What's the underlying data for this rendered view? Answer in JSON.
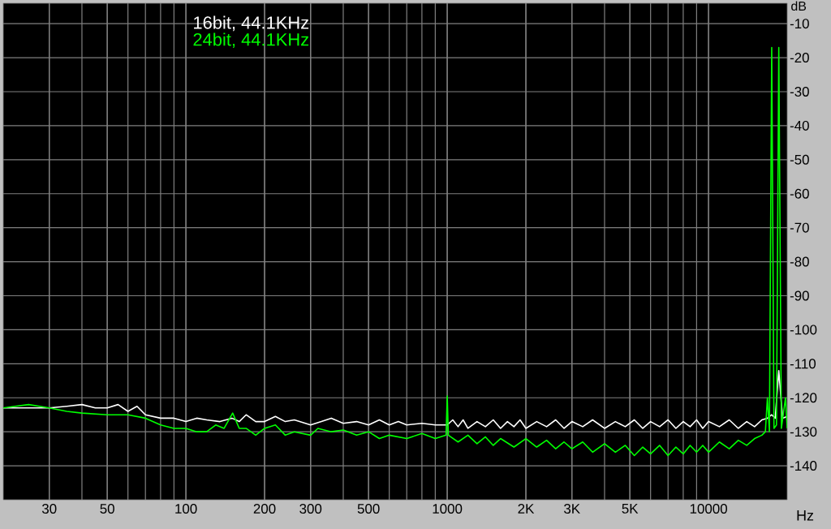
{
  "chart_data": {
    "type": "line",
    "xlabel": "Hz",
    "ylabel": "dB",
    "log": "x",
    "grid": true,
    "legend": "top left",
    "xlim": [
      20,
      20000
    ],
    "ylim": [
      -150,
      -4
    ],
    "xticks": [
      30,
      50,
      100,
      200,
      300,
      500,
      1000,
      {
        "value": 2000,
        "label": "2K"
      },
      {
        "value": 3000,
        "label": "3K"
      },
      {
        "value": 5000,
        "label": "5K"
      },
      10000
    ],
    "yticks": [
      -10,
      -20,
      -30,
      -40,
      -50,
      -60,
      -70,
      -80,
      -90,
      -100,
      -110,
      -120,
      -130,
      -140
    ],
    "series": [
      {
        "name": "16bit, 44.1KHz",
        "color": "#ffffff",
        "x": [
          20,
          25,
          30,
          35,
          40,
          45,
          50,
          55,
          60,
          65,
          70,
          80,
          90,
          100,
          110,
          120,
          135,
          150,
          160,
          170,
          185,
          200,
          220,
          240,
          260,
          300,
          330,
          360,
          400,
          450,
          500,
          550,
          600,
          650,
          700,
          800,
          900,
          1000,
          1050,
          1100,
          1150,
          1200,
          1300,
          1400,
          1500,
          1600,
          1700,
          1800,
          1900,
          2000,
          2200,
          2400,
          2600,
          2800,
          3000,
          3300,
          3600,
          4000,
          4400,
          4800,
          5200,
          5600,
          6000,
          6500,
          7000,
          7500,
          8000,
          8500,
          9000,
          9500,
          10000,
          11000,
          12000,
          13000,
          14000,
          15000,
          16000,
          16800,
          17450,
          18000,
          18570,
          19200,
          20000
        ],
        "values": [
          -123,
          -123,
          -123,
          -122.5,
          -122,
          -123,
          -123,
          -122,
          -124,
          -122.5,
          -125,
          -126,
          -126,
          -127,
          -126,
          -126.5,
          -127,
          -126,
          -127,
          -125,
          -127,
          -127,
          -125.5,
          -127,
          -126.5,
          -128,
          -127,
          -126,
          -127.5,
          -127,
          -128,
          -126.5,
          -128,
          -127,
          -128,
          -127.5,
          -128,
          -128,
          -126.5,
          -128.5,
          -126.5,
          -129,
          -127,
          -128.5,
          -126.5,
          -129,
          -127,
          -128.5,
          -126.5,
          -129,
          -127,
          -128.5,
          -126.5,
          -129,
          -127,
          -128.5,
          -126.5,
          -129,
          -127,
          -128.5,
          -126.5,
          -129,
          -127,
          -128.5,
          -126.5,
          -129,
          -127,
          -128.5,
          -126.5,
          -129,
          -127,
          -128.5,
          -126.5,
          -129,
          -127,
          -128.5,
          -126.5,
          -126,
          -125,
          -126,
          -112,
          -126,
          -125.5
        ]
      },
      {
        "name": "24bit, 44.1KHz",
        "color": "#00ff00",
        "x": [
          20,
          25,
          30,
          35,
          40,
          50,
          60,
          70,
          80,
          90,
          100,
          110,
          120,
          130,
          140,
          151,
          160,
          170,
          185,
          200,
          220,
          240,
          260,
          300,
          320,
          360,
          400,
          450,
          500,
          550,
          600,
          700,
          800,
          900,
          990,
          1000,
          1010,
          1100,
          1200,
          1300,
          1400,
          1500,
          1600,
          1800,
          2000,
          2200,
          2400,
          2600,
          2800,
          3000,
          3300,
          3600,
          4000,
          4400,
          4800,
          5200,
          5600,
          6000,
          6500,
          7000,
          7500,
          8000,
          8500,
          9000,
          9500,
          10000,
          11000,
          12000,
          13000,
          14000,
          15000,
          16000,
          16500,
          16800,
          17100,
          17450,
          17800,
          18200,
          18570,
          19000,
          19700,
          20000
        ],
        "values": [
          -123,
          -122,
          -123,
          -124,
          -124.5,
          -125,
          -125,
          -126,
          -128,
          -129,
          -129,
          -130,
          -130,
          -128,
          -129,
          -124.5,
          -129,
          -129,
          -131,
          -129,
          -128,
          -131,
          -130,
          -131,
          -129,
          -130,
          -129.5,
          -131,
          -130,
          -132,
          -131,
          -132,
          -130.5,
          -132,
          -131,
          -119.5,
          -131,
          -133,
          -131,
          -133.5,
          -131.5,
          -134,
          -132,
          -134.5,
          -132,
          -134.5,
          -132.5,
          -135,
          -133,
          -135,
          -133,
          -136,
          -133.5,
          -136,
          -134,
          -137,
          -134.5,
          -136.5,
          -134,
          -137,
          -134.5,
          -136.5,
          -134,
          -136,
          -134,
          -136,
          -133,
          -135,
          -132.5,
          -134,
          -132,
          -131,
          -130,
          -120,
          -130,
          -17,
          -129,
          -128,
          -17,
          -129,
          -120,
          -129
        ]
      }
    ]
  }
}
